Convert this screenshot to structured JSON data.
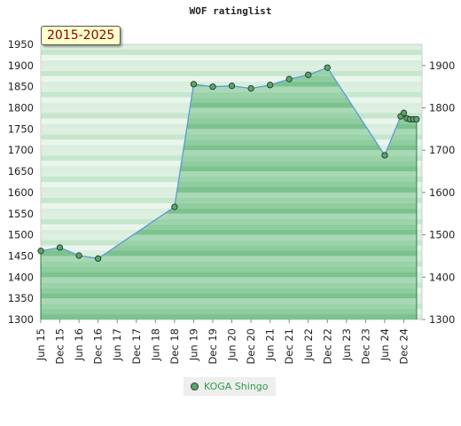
{
  "chart_data": {
    "type": "area",
    "title": "WOF ratinglist",
    "period_label": "2015-2025",
    "ylim": [
      1300,
      1950
    ],
    "y_ticks_left": [
      1300,
      1350,
      1400,
      1450,
      1500,
      1550,
      1600,
      1650,
      1700,
      1750,
      1800,
      1850,
      1900,
      1950
    ],
    "y_ticks_right": [
      1300,
      1400,
      1500,
      1600,
      1700,
      1800,
      1900
    ],
    "x_tick_labels": [
      "Jun 15",
      "Dec 15",
      "Jun 16",
      "Dec 16",
      "Jun 17",
      "Dec 17",
      "Jun 18",
      "Dec 18",
      "Jun 19",
      "Dec 19",
      "Jun 20",
      "Dec 20",
      "Jun 21",
      "Dec 21",
      "Jun 22",
      "Dec 22",
      "Jun 23",
      "Dec 23",
      "Jun 24",
      "Dec 24"
    ],
    "grid": true,
    "legend_position": "bottom-center",
    "colors": {
      "line": "#5b9bd5",
      "marker": "#55a868",
      "band_dark": "#8fcc9f",
      "band_light": "#eaf6ec"
    },
    "series": [
      {
        "name": "KOGA Shingo",
        "points": [
          {
            "x": "2015-06-01",
            "y": 1462
          },
          {
            "x": "2015-12-01",
            "y": 1470
          },
          {
            "x": "2016-06-01",
            "y": 1451
          },
          {
            "x": "2016-12-01",
            "y": 1444
          },
          {
            "x": "2018-12-01",
            "y": 1566
          },
          {
            "x": "2019-06-01",
            "y": 1856
          },
          {
            "x": "2019-12-01",
            "y": 1850
          },
          {
            "x": "2020-06-01",
            "y": 1852
          },
          {
            "x": "2020-12-01",
            "y": 1846
          },
          {
            "x": "2021-06-01",
            "y": 1854
          },
          {
            "x": "2021-12-01",
            "y": 1868
          },
          {
            "x": "2022-06-01",
            "y": 1878
          },
          {
            "x": "2022-12-01",
            "y": 1895
          },
          {
            "x": "2024-06-01",
            "y": 1688
          },
          {
            "x": "2024-11-01",
            "y": 1780
          },
          {
            "x": "2024-12-01",
            "y": 1788
          },
          {
            "x": "2025-01-01",
            "y": 1775
          },
          {
            "x": "2025-02-01",
            "y": 1773
          },
          {
            "x": "2025-03-01",
            "y": 1773
          },
          {
            "x": "2025-04-01",
            "y": 1773
          }
        ]
      }
    ]
  }
}
